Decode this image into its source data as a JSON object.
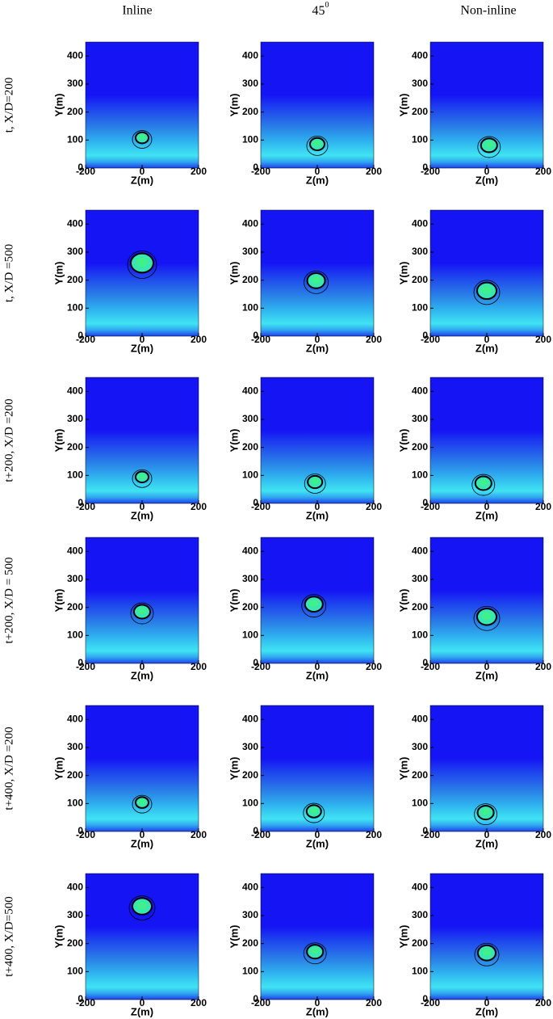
{
  "columns": [
    {
      "text": "Inline"
    },
    {
      "text": "45",
      "superscript": "0"
    },
    {
      "text": "Non-inline"
    }
  ],
  "rows": [
    "t, X/D=200",
    "t, X/D =500",
    "t+200, X/D =200",
    "t+200, X/D = 500",
    "t+400, X/D =200",
    "t+400, X/D=500"
  ],
  "chart_data": [
    {
      "type": "contour",
      "xlabel": "Z(m)",
      "ylabel": "Y(m)",
      "xlim": [
        -200,
        200
      ],
      "ylim": [
        0,
        450
      ],
      "xticks": [
        -200,
        0,
        200
      ],
      "yticks": [
        0,
        100,
        200,
        300,
        400
      ]
    },
    {
      "type": "contour",
      "xlabel": "Z(m)",
      "ylabel": "Y(m)",
      "xlim": [
        -200,
        200
      ],
      "ylim": [
        0,
        450
      ],
      "xticks": [
        -200,
        0,
        200
      ],
      "yticks": [
        0,
        100,
        200,
        300,
        400
      ]
    },
    {
      "type": "contour",
      "xlabel": "Z(m)",
      "ylabel": "Y(m)",
      "xlim": [
        -200,
        200
      ],
      "ylim": [
        0,
        450
      ],
      "xticks": [
        -200,
        0,
        200
      ],
      "yticks": [
        0,
        100,
        200,
        300,
        400
      ]
    },
    {
      "type": "contour",
      "xlabel": "Z(m)",
      "ylabel": "Y(m)",
      "xlim": [
        -200,
        200
      ],
      "ylim": [
        0,
        450
      ],
      "xticks": [
        -200,
        0,
        200
      ],
      "yticks": [
        0,
        100,
        200,
        300,
        400
      ]
    },
    {
      "type": "contour",
      "xlabel": "Z(m)",
      "ylabel": "Y(m)",
      "xlim": [
        -200,
        200
      ],
      "ylim": [
        0,
        450
      ],
      "xticks": [
        -200,
        0,
        200
      ],
      "yticks": [
        0,
        100,
        200,
        300,
        400
      ]
    },
    {
      "type": "contour",
      "xlabel": "Z(m)",
      "ylabel": "Y(m)",
      "xlim": [
        -200,
        200
      ],
      "ylim": [
        0,
        450
      ],
      "xticks": [
        -200,
        0,
        200
      ],
      "yticks": [
        0,
        100,
        200,
        300,
        400
      ]
    },
    {
      "type": "contour",
      "xlabel": "Z(m)",
      "ylabel": "Y(m)",
      "xlim": [
        -200,
        200
      ],
      "ylim": [
        0,
        450
      ],
      "xticks": [
        -200,
        0,
        200
      ],
      "yticks": [
        0,
        100,
        200,
        300,
        400
      ]
    },
    {
      "type": "contour",
      "xlabel": "Z(m)",
      "ylabel": "Y(m)",
      "xlim": [
        -200,
        200
      ],
      "ylim": [
        0,
        450
      ],
      "xticks": [
        -200,
        0,
        200
      ],
      "yticks": [
        0,
        100,
        200,
        300,
        400
      ]
    },
    {
      "type": "contour",
      "xlabel": "Z(m)",
      "ylabel": "Y(m)",
      "xlim": [
        -200,
        200
      ],
      "ylim": [
        0,
        450
      ],
      "xticks": [
        -200,
        0,
        200
      ],
      "yticks": [
        0,
        100,
        200,
        300,
        400
      ]
    },
    {
      "type": "contour",
      "xlabel": "Z(m)",
      "ylabel": "Y(m)",
      "xlim": [
        -200,
        200
      ],
      "ylim": [
        0,
        450
      ],
      "xticks": [
        -200,
        0,
        200
      ],
      "yticks": [
        0,
        100,
        200,
        300,
        400
      ]
    },
    {
      "type": "contour",
      "xlabel": "Z(m)",
      "ylabel": "Y(m)",
      "xlim": [
        -200,
        200
      ],
      "ylim": [
        0,
        450
      ],
      "xticks": [
        -200,
        0,
        200
      ],
      "yticks": [
        0,
        100,
        200,
        300,
        400
      ]
    },
    {
      "type": "contour",
      "xlabel": "Z(m)",
      "ylabel": "Y(m)",
      "xlim": [
        -200,
        200
      ],
      "ylim": [
        0,
        450
      ],
      "xticks": [
        -200,
        0,
        200
      ],
      "yticks": [
        0,
        100,
        200,
        300,
        400
      ]
    },
    {
      "type": "contour",
      "xlabel": "Z(m)",
      "ylabel": "Y(m)",
      "xlim": [
        -200,
        200
      ],
      "ylim": [
        0,
        450
      ],
      "xticks": [
        -200,
        0,
        200
      ],
      "yticks": [
        0,
        100,
        200,
        300,
        400
      ]
    },
    {
      "type": "contour",
      "xlabel": "Z(m)",
      "ylabel": "Y(m)",
      "xlim": [
        -200,
        200
      ],
      "ylim": [
        0,
        450
      ],
      "xticks": [
        -200,
        0,
        200
      ],
      "yticks": [
        0,
        100,
        200,
        300,
        400
      ]
    },
    {
      "type": "contour",
      "xlabel": "Z(m)",
      "ylabel": "Y(m)",
      "xlim": [
        -200,
        200
      ],
      "ylim": [
        0,
        450
      ],
      "xticks": [
        -200,
        0,
        200
      ],
      "yticks": [
        0,
        100,
        200,
        300,
        400
      ]
    },
    {
      "type": "contour",
      "xlabel": "Z(m)",
      "ylabel": "Y(m)",
      "xlim": [
        -200,
        200
      ],
      "ylim": [
        0,
        450
      ],
      "xticks": [
        -200,
        0,
        200
      ],
      "yticks": [
        0,
        100,
        200,
        300,
        400
      ]
    },
    {
      "type": "contour",
      "xlabel": "Z(m)",
      "ylabel": "Y(m)",
      "xlim": [
        -200,
        200
      ],
      "ylim": [
        0,
        450
      ],
      "xticks": [
        -200,
        0,
        200
      ],
      "yticks": [
        0,
        100,
        200,
        300,
        400
      ]
    },
    {
      "type": "contour",
      "xlabel": "Z(m)",
      "ylabel": "Y(m)",
      "xlim": [
        -200,
        200
      ],
      "ylim": [
        0,
        450
      ],
      "xticks": [
        -200,
        0,
        200
      ],
      "yticks": [
        0,
        100,
        200,
        300,
        400
      ]
    }
  ]
}
